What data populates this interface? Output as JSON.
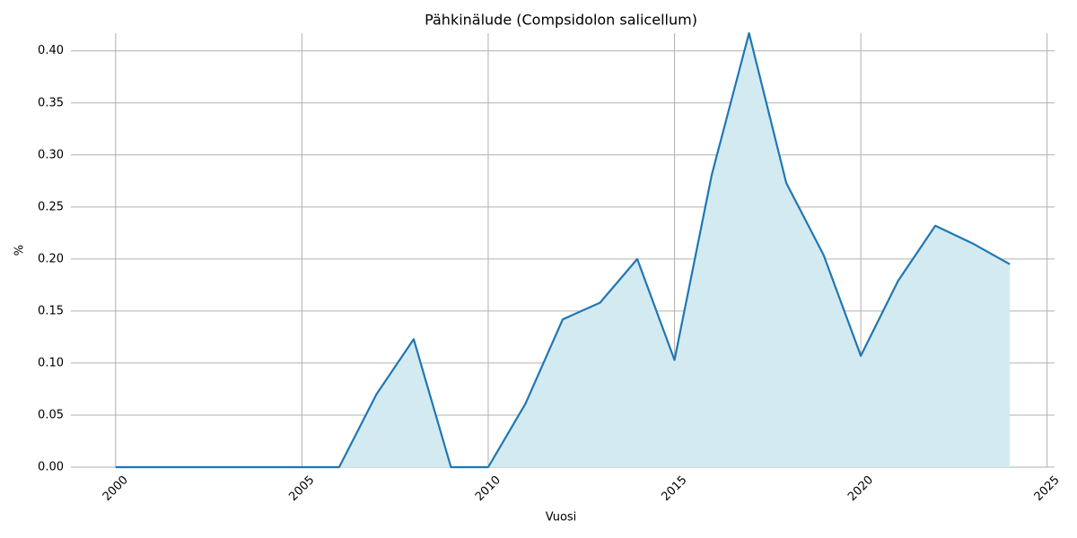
{
  "chart_data": {
    "type": "area",
    "title": "Pähkinälude (Compsidolon salicellum)",
    "x_label": "Vuosi",
    "y_label": "%",
    "x": [
      2000,
      2001,
      2002,
      2003,
      2004,
      2005,
      2006,
      2007,
      2008,
      2009,
      2010,
      2011,
      2012,
      2013,
      2014,
      2015,
      2016,
      2017,
      2018,
      2019,
      2020,
      2021,
      2022,
      2023,
      2024
    ],
    "values": [
      0,
      0,
      0,
      0,
      0,
      0,
      0,
      0.07,
      0.123,
      0,
      0,
      0.061,
      0.142,
      0.158,
      0.2,
      0.103,
      0.281,
      0.417,
      0.273,
      0.204,
      0.107,
      0.179,
      0.232,
      0.215,
      0.195
    ],
    "color": "#1f77b4",
    "fill_color": "#d4eaf1",
    "xlim": [
      1998.8,
      2025.2
    ],
    "ylim": [
      0,
      0.417
    ],
    "xticks": [
      2000,
      2005,
      2010,
      2015,
      2020,
      2025
    ],
    "yticks": [
      {
        "value": 0,
        "label": "0.00"
      },
      {
        "value": 0.05,
        "label": "0.05"
      },
      {
        "value": 0.1,
        "label": "0.10"
      },
      {
        "value": 0.15,
        "label": "0.15"
      },
      {
        "value": 0.2,
        "label": "0.20"
      },
      {
        "value": 0.25,
        "label": "0.25"
      },
      {
        "value": 0.3,
        "label": "0.30"
      },
      {
        "value": 0.35,
        "label": "0.35"
      },
      {
        "value": 0.4,
        "label": "0.40"
      }
    ],
    "grid": true
  }
}
